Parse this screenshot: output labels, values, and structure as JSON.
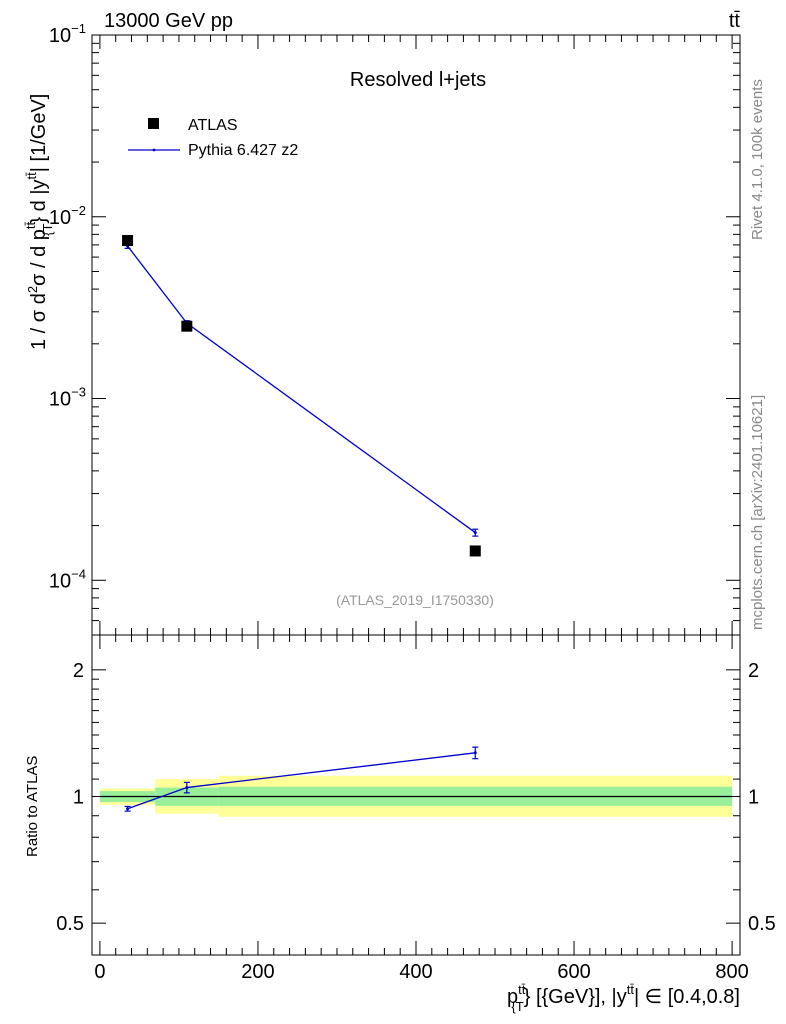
{
  "header": {
    "energy_label": "13000 GeV pp",
    "process_label": "tt̄"
  },
  "side_labels": {
    "rivet": "Rivet 4.1.0,  100k events",
    "mcplots": "mcplots.cern.ch [arXiv:2401.10621]"
  },
  "chart_data": [
    {
      "type": "line",
      "panel": "main",
      "title": "Resolved l+jets",
      "analysis_id": "(ATLAS_2019_I1750330)",
      "y_scale": "log",
      "ylim": [
        5e-05,
        0.1
      ],
      "xlim": [
        -10,
        810
      ],
      "ylabel": {
        "prefix": "1 / σ d",
        "sq": "2",
        "mid": "σ /  d p",
        "sup1": "tt̄",
        "sub1": "{T",
        "mid2": "} d |y",
        "sup2": "tt̄",
        "suffix": "| [1/GeV]"
      },
      "y_ticks": [
        {
          "value": 0.1,
          "base": "10",
          "exp": "−1"
        },
        {
          "value": 0.01,
          "base": "10",
          "exp": "−2"
        },
        {
          "value": 0.001,
          "base": "10",
          "exp": "−3"
        },
        {
          "value": 0.0001,
          "base": "10",
          "exp": "−4"
        }
      ],
      "legend": [
        {
          "name": "ATLAS",
          "marker": "square",
          "color": "#000000"
        },
        {
          "name": "Pythia 6.427 z2",
          "marker": "line",
          "color": "#0000cc"
        }
      ],
      "series": [
        {
          "name": "ATLAS",
          "color": "#000000",
          "x": [
            35,
            110,
            475
          ],
          "y": [
            0.0074,
            0.0025,
            0.000145
          ]
        },
        {
          "name": "Pythia 6.427 z2",
          "color": "#0000cc",
          "x": [
            35,
            110,
            475
          ],
          "y": [
            0.0069,
            0.0026,
            0.000183
          ],
          "y_err": [
            0.0002,
            8e-05,
            8e-06
          ]
        }
      ]
    },
    {
      "type": "line",
      "panel": "ratio",
      "ylabel": "Ratio to ATLAS",
      "y_scale": "log",
      "ylim": [
        0.42,
        2.42
      ],
      "xlim": [
        -10,
        810
      ],
      "y_ticks": [
        {
          "value": 0.5,
          "label": "0.5"
        },
        {
          "value": 1,
          "label": "1"
        },
        {
          "value": 2,
          "label": "2"
        }
      ],
      "x_ticks": [
        {
          "value": 0,
          "label": "0"
        },
        {
          "value": 200,
          "label": "200"
        },
        {
          "value": 400,
          "label": "400"
        },
        {
          "value": 600,
          "label": "600"
        },
        {
          "value": 800,
          "label": "800"
        }
      ],
      "xlabel": {
        "main": "p",
        "sup1": "tt̄",
        "sub1": "{T",
        "rest": "} [{GeV}], |y",
        "sup2": "tt̄",
        "range": "| ∈ [0.4,0.8]"
      },
      "bands": [
        {
          "x0": 0,
          "x1": 70,
          "inner": [
            0.97,
            1.03
          ],
          "outer": [
            0.955,
            1.045
          ]
        },
        {
          "x0": 70,
          "x1": 150,
          "inner": [
            0.95,
            1.05
          ],
          "outer": [
            0.91,
            1.1
          ]
        },
        {
          "x0": 150,
          "x1": 800,
          "inner": [
            0.95,
            1.055
          ],
          "outer": [
            0.895,
            1.12
          ]
        }
      ],
      "series": [
        {
          "name": "Pythia 6.427 z2 / ATLAS",
          "color": "#0000cc",
          "x": [
            35,
            110,
            475
          ],
          "y": [
            0.935,
            1.05,
            1.27
          ],
          "y_err": [
            0.012,
            0.03,
            0.04
          ]
        }
      ],
      "band_colors": {
        "inner": "#99ee99",
        "outer": "#ffff99"
      }
    }
  ]
}
